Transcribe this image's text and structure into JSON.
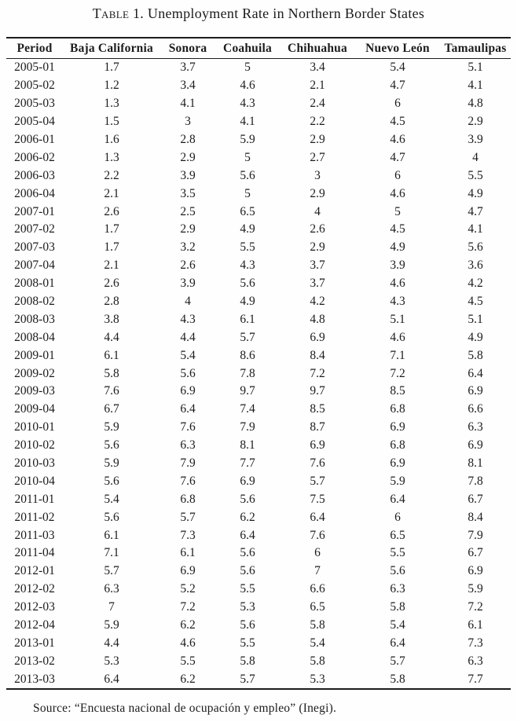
{
  "title": {
    "smallcaps_part": "Table 1.",
    "rest_part": " Unemployment Rate in Northern Border States"
  },
  "table": {
    "columns": [
      "Period",
      "Baja California",
      "Sonora",
      "Coahuila",
      "Chihuahua",
      "Nuevo León",
      "Tamaulipas"
    ],
    "rows": [
      [
        "2005-01",
        "1.7",
        "3.7",
        "5",
        "3.4",
        "5.4",
        "5.1"
      ],
      [
        "2005-02",
        "1.2",
        "3.4",
        "4.6",
        "2.1",
        "4.7",
        "4.1"
      ],
      [
        "2005-03",
        "1.3",
        "4.1",
        "4.3",
        "2.4",
        "6",
        "4.8"
      ],
      [
        "2005-04",
        "1.5",
        "3",
        "4.1",
        "2.2",
        "4.5",
        "2.9"
      ],
      [
        "2006-01",
        "1.6",
        "2.8",
        "5.9",
        "2.9",
        "4.6",
        "3.9"
      ],
      [
        "2006-02",
        "1.3",
        "2.9",
        "5",
        "2.7",
        "4.7",
        "4"
      ],
      [
        "2006-03",
        "2.2",
        "3.9",
        "5.6",
        "3",
        "6",
        "5.5"
      ],
      [
        "2006-04",
        "2.1",
        "3.5",
        "5",
        "2.9",
        "4.6",
        "4.9"
      ],
      [
        "2007-01",
        "2.6",
        "2.5",
        "6.5",
        "4",
        "5",
        "4.7"
      ],
      [
        "2007-02",
        "1.7",
        "2.9",
        "4.9",
        "2.6",
        "4.5",
        "4.1"
      ],
      [
        "2007-03",
        "1.7",
        "3.2",
        "5.5",
        "2.9",
        "4.9",
        "5.6"
      ],
      [
        "2007-04",
        "2.1",
        "2.6",
        "4.3",
        "3.7",
        "3.9",
        "3.6"
      ],
      [
        "2008-01",
        "2.6",
        "3.9",
        "5.6",
        "3.7",
        "4.6",
        "4.2"
      ],
      [
        "2008-02",
        "2.8",
        "4",
        "4.9",
        "4.2",
        "4.3",
        "4.5"
      ],
      [
        "2008-03",
        "3.8",
        "4.3",
        "6.1",
        "4.8",
        "5.1",
        "5.1"
      ],
      [
        "2008-04",
        "4.4",
        "4.4",
        "5.7",
        "6.9",
        "4.6",
        "4.9"
      ],
      [
        "2009-01",
        "6.1",
        "5.4",
        "8.6",
        "8.4",
        "7.1",
        "5.8"
      ],
      [
        "2009-02",
        "5.8",
        "5.6",
        "7.8",
        "7.2",
        "7.2",
        "6.4"
      ],
      [
        "2009-03",
        "7.6",
        "6.9",
        "9.7",
        "9.7",
        "8.5",
        "6.9"
      ],
      [
        "2009-04",
        "6.7",
        "6.4",
        "7.4",
        "8.5",
        "6.8",
        "6.6"
      ],
      [
        "2010-01",
        "5.9",
        "7.6",
        "7.9",
        "8.7",
        "6.9",
        "6.3"
      ],
      [
        "2010-02",
        "5.6",
        "6.3",
        "8.1",
        "6.9",
        "6.8",
        "6.9"
      ],
      [
        "2010-03",
        "5.9",
        "7.9",
        "7.7",
        "7.6",
        "6.9",
        "8.1"
      ],
      [
        "2010-04",
        "5.6",
        "7.6",
        "6.9",
        "5.7",
        "5.9",
        "7.8"
      ],
      [
        "2011-01",
        "5.4",
        "6.8",
        "5.6",
        "7.5",
        "6.4",
        "6.7"
      ],
      [
        "2011-02",
        "5.6",
        "5.7",
        "6.2",
        "6.4",
        "6",
        "8.4"
      ],
      [
        "2011-03",
        "6.1",
        "7.3",
        "6.4",
        "7.6",
        "6.5",
        "7.9"
      ],
      [
        "2011-04",
        "7.1",
        "6.1",
        "5.6",
        "6",
        "5.5",
        "6.7"
      ],
      [
        "2012-01",
        "5.7",
        "6.9",
        "5.6",
        "7",
        "5.6",
        "6.9"
      ],
      [
        "2012-02",
        "6.3",
        "5.2",
        "5.5",
        "6.6",
        "6.3",
        "5.9"
      ],
      [
        "2012-03",
        "7",
        "7.2",
        "5.3",
        "6.5",
        "5.8",
        "7.2"
      ],
      [
        "2012-04",
        "5.9",
        "6.2",
        "5.6",
        "5.8",
        "5.4",
        "6.1"
      ],
      [
        "2013-01",
        "4.4",
        "4.6",
        "5.5",
        "5.4",
        "6.4",
        "7.3"
      ],
      [
        "2013-02",
        "5.3",
        "5.5",
        "5.8",
        "5.8",
        "5.7",
        "6.3"
      ],
      [
        "2013-03",
        "6.4",
        "6.2",
        "5.7",
        "5.3",
        "5.8",
        "7.7"
      ]
    ]
  },
  "source": {
    "text": "Source: “Encuesta nacional de ocupación y empleo” (Inegi)."
  },
  "colors": {
    "text": "#1c1c1c",
    "background": "#fefefe",
    "rule": "#1c1c1c"
  }
}
